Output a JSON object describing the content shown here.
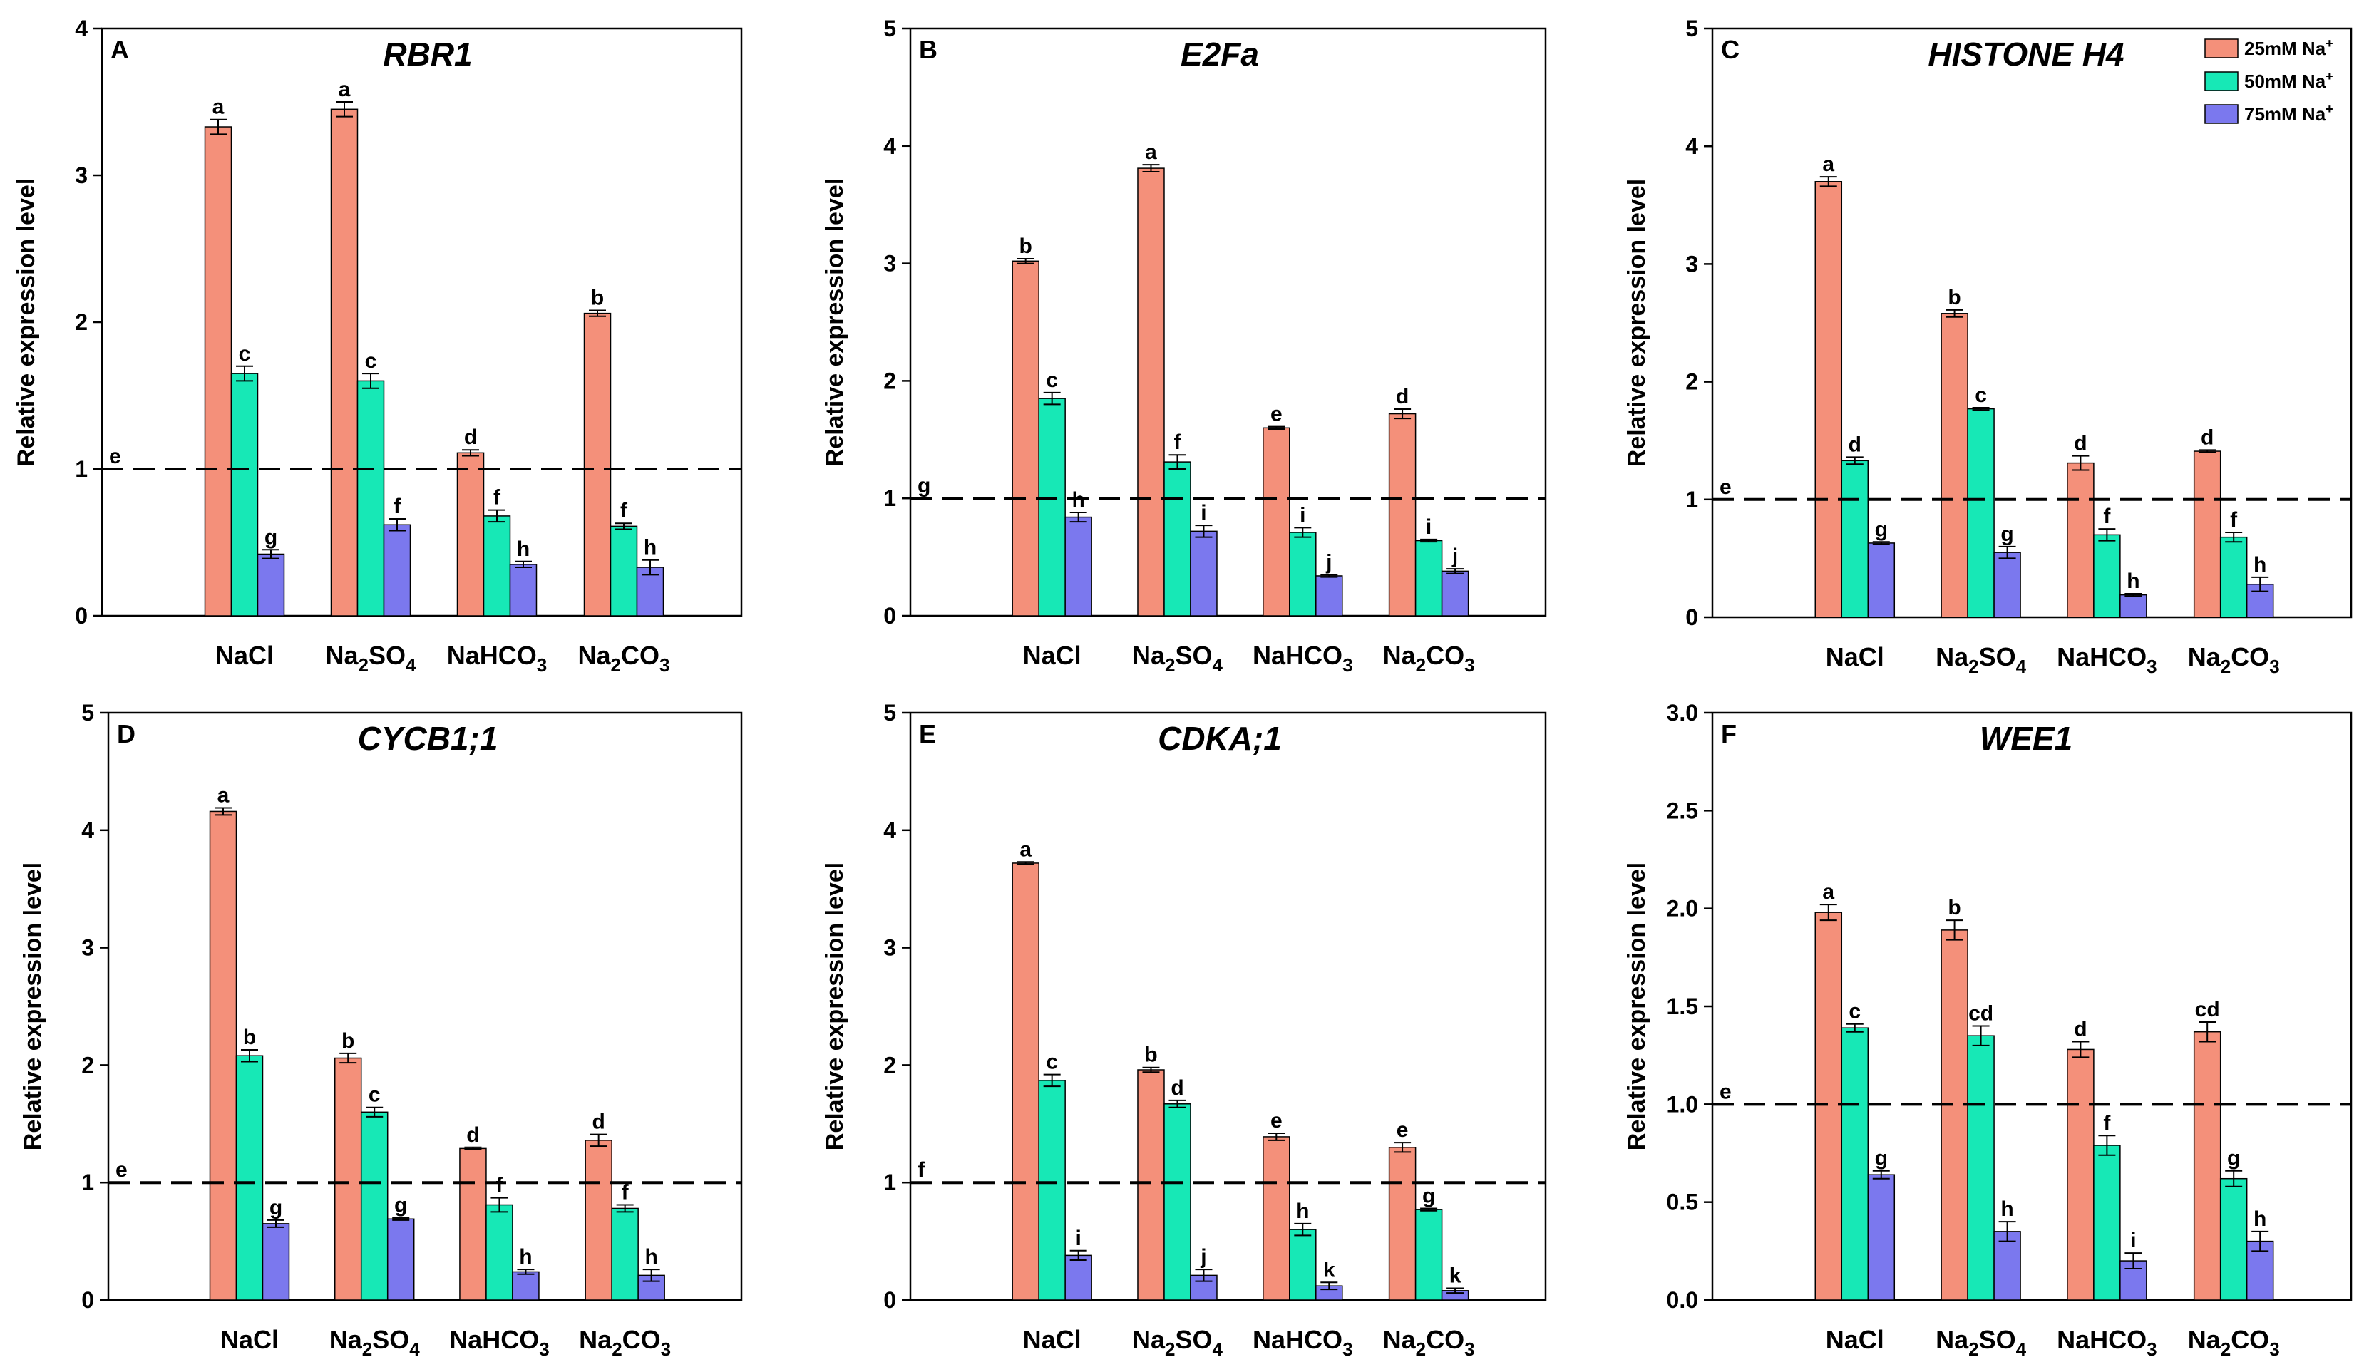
{
  "chart_data": [
    {
      "type": "bar",
      "panel": "A",
      "title": "RBR1",
      "ylabel": "Relative expression level",
      "ylim": [
        0,
        4
      ],
      "yticks": [
        "0",
        "1",
        "2",
        "3",
        "4"
      ],
      "reference_line": 1,
      "reference_label": "e",
      "categories": [
        {
          "base": "NaCl",
          "sub": ""
        },
        {
          "base": "Na",
          "sub": "2",
          "rest": "SO",
          "sub2": "4"
        },
        {
          "base": "NaHCO",
          "sub": "3"
        },
        {
          "base": "Na",
          "sub": "2",
          "rest": "CO",
          "sub2": "3"
        }
      ],
      "series": [
        {
          "name": "25mM Na+",
          "values": [
            3.33,
            3.45,
            1.11,
            2.06
          ],
          "errors": [
            0.05,
            0.05,
            0.02,
            0.02
          ],
          "letters": [
            "a",
            "a",
            "d",
            "b"
          ]
        },
        {
          "name": "50mM Na+",
          "values": [
            1.65,
            1.6,
            0.68,
            0.61
          ],
          "errors": [
            0.05,
            0.05,
            0.04,
            0.02
          ],
          "letters": [
            "c",
            "c",
            "f",
            "f"
          ]
        },
        {
          "name": "75mM Na+",
          "values": [
            0.42,
            0.62,
            0.35,
            0.33
          ],
          "errors": [
            0.03,
            0.04,
            0.02,
            0.05
          ],
          "letters": [
            "g",
            "f",
            "h",
            "h"
          ]
        }
      ]
    },
    {
      "type": "bar",
      "panel": "B",
      "title": "E2Fa",
      "ylabel": "Relative expression level",
      "ylim": [
        0,
        5
      ],
      "yticks": [
        "0",
        "1",
        "2",
        "3",
        "4",
        "5"
      ],
      "reference_line": 1,
      "reference_label": "g",
      "categories": [
        {
          "base": "NaCl",
          "sub": ""
        },
        {
          "base": "Na",
          "sub": "2",
          "rest": "SO",
          "sub2": "4"
        },
        {
          "base": "NaHCO",
          "sub": "3"
        },
        {
          "base": "Na",
          "sub": "2",
          "rest": "CO",
          "sub2": "3"
        }
      ],
      "series": [
        {
          "name": "25mM Na+",
          "values": [
            3.02,
            3.81,
            1.6,
            1.72
          ],
          "errors": [
            0.02,
            0.03,
            0.01,
            0.04
          ],
          "letters": [
            "b",
            "a",
            "e",
            "d"
          ]
        },
        {
          "name": "50mM Na+",
          "values": [
            1.85,
            1.31,
            0.71,
            0.64
          ],
          "errors": [
            0.05,
            0.06,
            0.04,
            0.01
          ],
          "letters": [
            "c",
            "f",
            "i",
            "i"
          ]
        },
        {
          "name": "75mM Na+",
          "values": [
            0.84,
            0.72,
            0.34,
            0.38
          ],
          "errors": [
            0.04,
            0.05,
            0.01,
            0.02
          ],
          "letters": [
            "h",
            "i",
            "j",
            "j"
          ]
        }
      ]
    },
    {
      "type": "bar",
      "panel": "C",
      "title": "HISTONE H4",
      "ylabel": "Relative expression level",
      "ylim": [
        0,
        5
      ],
      "yticks": [
        "0",
        "1",
        "2",
        "3",
        "4",
        "5"
      ],
      "reference_line": 1,
      "reference_label": "e",
      "categories": [
        {
          "base": "NaCl",
          "sub": ""
        },
        {
          "base": "Na",
          "sub": "2",
          "rest": "SO",
          "sub2": "4"
        },
        {
          "base": "NaHCO",
          "sub": "3"
        },
        {
          "base": "Na",
          "sub": "2",
          "rest": "CO",
          "sub2": "3"
        }
      ],
      "series": [
        {
          "name": "25mM Na+",
          "values": [
            3.7,
            2.58,
            1.31,
            1.41
          ],
          "errors": [
            0.04,
            0.03,
            0.06,
            0.01
          ],
          "letters": [
            "a",
            "b",
            "d",
            "d"
          ]
        },
        {
          "name": "50mM Na+",
          "values": [
            1.33,
            1.77,
            0.7,
            0.68
          ],
          "errors": [
            0.03,
            0.01,
            0.05,
            0.04
          ],
          "letters": [
            "d",
            "c",
            "f",
            "f"
          ]
        },
        {
          "name": "75mM Na+",
          "values": [
            0.63,
            0.55,
            0.19,
            0.28
          ],
          "errors": [
            0.01,
            0.05,
            0.01,
            0.06
          ],
          "letters": [
            "g",
            "g",
            "h",
            "h"
          ]
        }
      ],
      "legend": [
        {
          "label": "25mM Na",
          "sup": "+"
        },
        {
          "label": "50mM Na",
          "sup": "+"
        },
        {
          "label": "75mM Na",
          "sup": "+"
        }
      ]
    },
    {
      "type": "bar",
      "panel": "D",
      "title": "CYCB1;1",
      "ylabel": "Relative expression level",
      "ylim": [
        0,
        5
      ],
      "yticks": [
        "0",
        "1",
        "2",
        "3",
        "4",
        "5"
      ],
      "reference_line": 1,
      "reference_label": "e",
      "categories": [
        {
          "base": "NaCl",
          "sub": ""
        },
        {
          "base": "Na",
          "sub": "2",
          "rest": "SO",
          "sub2": "4"
        },
        {
          "base": "NaHCO",
          "sub": "3"
        },
        {
          "base": "Na",
          "sub": "2",
          "rest": "CO",
          "sub2": "3"
        }
      ],
      "series": [
        {
          "name": "25mM Na+",
          "values": [
            4.16,
            2.06,
            1.29,
            1.36
          ],
          "errors": [
            0.03,
            0.04,
            0.01,
            0.05
          ],
          "letters": [
            "a",
            "b",
            "d",
            "d"
          ]
        },
        {
          "name": "50mM Na+",
          "values": [
            2.08,
            1.6,
            0.81,
            0.78
          ],
          "errors": [
            0.05,
            0.04,
            0.06,
            0.03
          ],
          "letters": [
            "b",
            "c",
            "f",
            "f"
          ]
        },
        {
          "name": "75mM Na+",
          "values": [
            0.65,
            0.69,
            0.24,
            0.21
          ],
          "errors": [
            0.03,
            0.01,
            0.02,
            0.05
          ],
          "letters": [
            "g",
            "g",
            "h",
            "h"
          ]
        }
      ]
    },
    {
      "type": "bar",
      "panel": "E",
      "title": "CDKA;1",
      "ylabel": "Relative expression level",
      "ylim": [
        0,
        5
      ],
      "yticks": [
        "0",
        "1",
        "2",
        "3",
        "4",
        "5"
      ],
      "reference_line": 1,
      "reference_label": "f",
      "categories": [
        {
          "base": "NaCl",
          "sub": ""
        },
        {
          "base": "Na",
          "sub": "2",
          "rest": "SO",
          "sub2": "4"
        },
        {
          "base": "NaHCO",
          "sub": "3"
        },
        {
          "base": "Na",
          "sub": "2",
          "rest": "CO",
          "sub2": "3"
        }
      ],
      "series": [
        {
          "name": "25mM Na+",
          "values": [
            3.72,
            1.96,
            1.39,
            1.3
          ],
          "errors": [
            0.01,
            0.02,
            0.03,
            0.04
          ],
          "letters": [
            "a",
            "b",
            "e",
            "e"
          ]
        },
        {
          "name": "50mM Na+",
          "values": [
            1.87,
            1.67,
            0.6,
            0.77
          ],
          "errors": [
            0.05,
            0.03,
            0.05,
            0.01
          ],
          "letters": [
            "c",
            "d",
            "h",
            "g"
          ]
        },
        {
          "name": "75mM Na+",
          "values": [
            0.38,
            0.21,
            0.12,
            0.08
          ],
          "errors": [
            0.04,
            0.05,
            0.03,
            0.02
          ],
          "letters": [
            "i",
            "j",
            "k",
            "k"
          ]
        }
      ]
    },
    {
      "type": "bar",
      "panel": "F",
      "title": "WEE1",
      "ylabel": "Relative expression level",
      "ylim": [
        0,
        3.0
      ],
      "yticks": [
        "0.0",
        "0.5",
        "1.0",
        "1.5",
        "2.0",
        "2.5",
        "3.0"
      ],
      "reference_line": 1.0,
      "reference_label": "e",
      "categories": [
        {
          "base": "NaCl",
          "sub": ""
        },
        {
          "base": "Na",
          "sub": "2",
          "rest": "SO",
          "sub2": "4"
        },
        {
          "base": "NaHCO",
          "sub": "3"
        },
        {
          "base": "Na",
          "sub": "2",
          "rest": "CO",
          "sub2": "3"
        }
      ],
      "series": [
        {
          "name": "25mM Na+",
          "values": [
            1.98,
            1.89,
            1.28,
            1.37
          ],
          "errors": [
            0.04,
            0.05,
            0.04,
            0.05
          ],
          "letters": [
            "a",
            "b",
            "d",
            "cd"
          ]
        },
        {
          "name": "50mM Na+",
          "values": [
            1.39,
            1.35,
            0.79,
            0.62
          ],
          "errors": [
            0.02,
            0.05,
            0.05,
            0.04
          ],
          "letters": [
            "c",
            "cd",
            "f",
            "g"
          ]
        },
        {
          "name": "75mM Na+",
          "values": [
            0.64,
            0.35,
            0.2,
            0.3
          ],
          "errors": [
            0.02,
            0.05,
            0.04,
            0.05
          ],
          "letters": [
            "g",
            "h",
            "i",
            "h"
          ]
        }
      ]
    }
  ],
  "colors": {
    "series": [
      "#F4907A",
      "#17E8B6",
      "#7B78EE"
    ],
    "stroke": "#000000"
  }
}
